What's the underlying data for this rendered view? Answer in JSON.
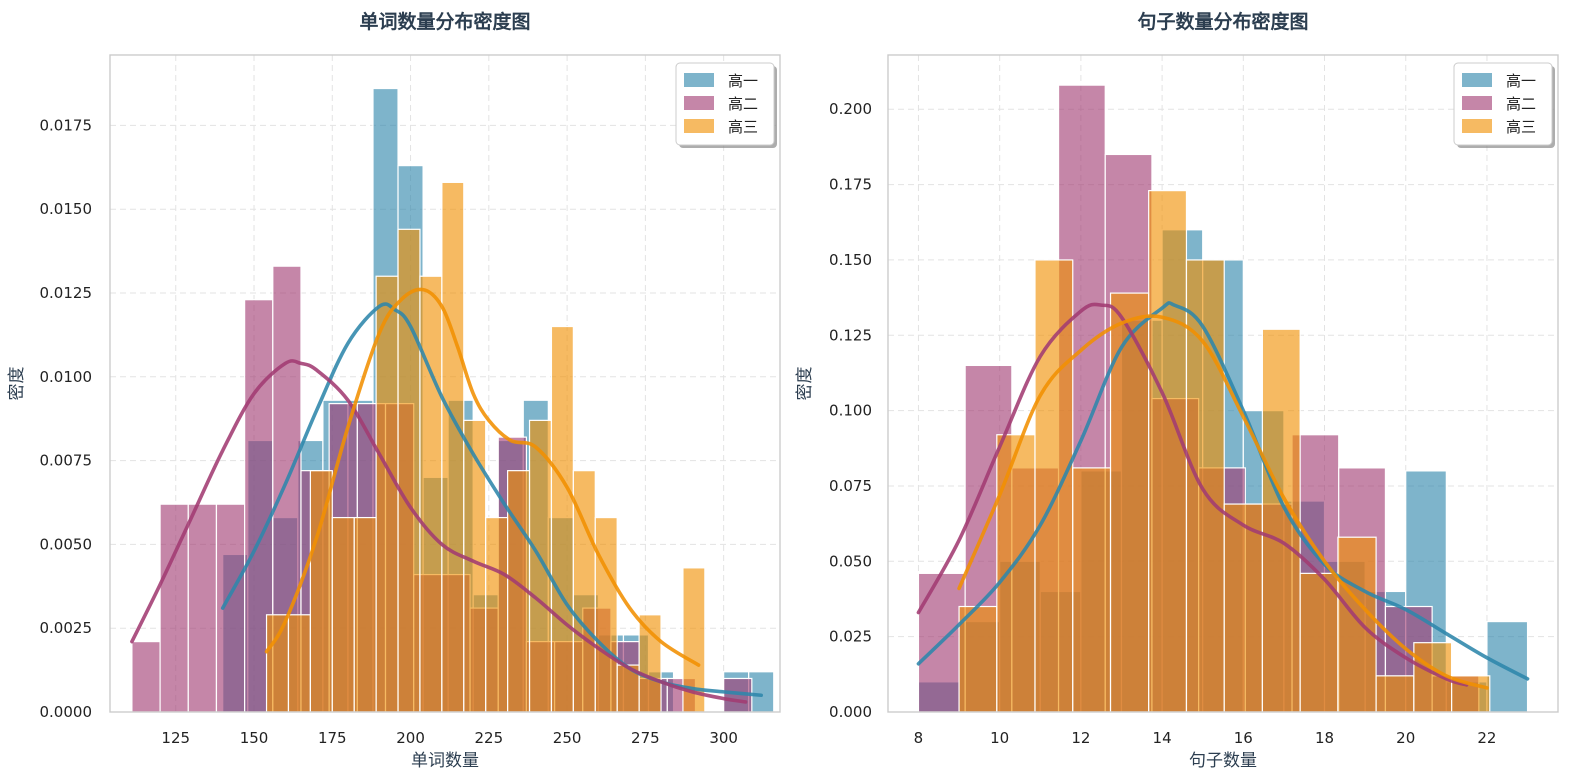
{
  "chart_data": [
    {
      "type": "histogram+kde",
      "title": "单词数量分布密度图",
      "xlabel": "单词数量",
      "ylabel": "密度",
      "xlim": [
        104,
        318
      ],
      "ylim": [
        0,
        0.0196
      ],
      "xticks": [
        125,
        150,
        175,
        200,
        225,
        250,
        275,
        300
      ],
      "xtick_labels": [
        "125",
        "150",
        "175",
        "200",
        "225",
        "250",
        "275",
        "300"
      ],
      "yticks": [
        0,
        0.0025,
        0.005,
        0.0075,
        0.01,
        0.0125,
        0.015,
        0.0175
      ],
      "ytick_labels": [
        "0.0000",
        "0.0025",
        "0.0050",
        "0.0075",
        "0.0100",
        "0.0125",
        "0.0150",
        "0.0175"
      ],
      "grid": true,
      "legend_position": "top-right",
      "series": [
        {
          "name": "高一",
          "color": "#2e86ab",
          "bins": [
            [
              140,
              148,
              0.0047
            ],
            [
              148,
              156,
              0.0081
            ],
            [
              156,
              164,
              0.0058
            ],
            [
              164,
              172,
              0.0081
            ],
            [
              172,
              180,
              0.0093
            ],
            [
              180,
              188,
              0.0093
            ],
            [
              188,
              196,
              0.0186
            ],
            [
              196,
              204,
              0.0163
            ],
            [
              204,
              212,
              0.007
            ],
            [
              212,
              220,
              0.0093
            ],
            [
              220,
              228,
              0.0035
            ],
            [
              228,
              236,
              0.0081
            ],
            [
              236,
              244,
              0.0093
            ],
            [
              244,
              252,
              0.0058
            ],
            [
              252,
              260,
              0.0035
            ],
            [
              260,
              268,
              0.0023
            ],
            [
              268,
              276,
              0.0023
            ],
            [
              276,
              284,
              0.0012
            ],
            [
              284,
              292,
              0.0
            ],
            [
              292,
              300,
              0.0
            ],
            [
              300,
              308,
              0.0012
            ],
            [
              308,
              316,
              0.0012
            ]
          ],
          "kde_x": [
            140,
            150,
            160,
            170,
            180,
            190,
            195,
            200,
            210,
            220,
            230,
            240,
            250,
            260,
            270,
            280,
            290,
            300,
            312
          ],
          "kde_y": [
            0.0031,
            0.0048,
            0.0068,
            0.009,
            0.011,
            0.0121,
            0.012,
            0.0115,
            0.0094,
            0.0077,
            0.0062,
            0.0048,
            0.0032,
            0.0021,
            0.0013,
            0.0009,
            0.0007,
            0.0006,
            0.0005
          ]
        },
        {
          "name": "高二",
          "color": "#a23b72",
          "bins": [
            [
              111,
              120,
              0.0021
            ],
            [
              120,
              129,
              0.0062
            ],
            [
              129,
              138,
              0.0062
            ],
            [
              138,
              147,
              0.0062
            ],
            [
              147,
              156,
              0.0123
            ],
            [
              156,
              165,
              0.0133
            ],
            [
              165,
              174,
              0.0072
            ],
            [
              174,
              183,
              0.0092
            ],
            [
              183,
              192,
              0.0092
            ],
            [
              192,
              201,
              0.0092
            ],
            [
              201,
              210,
              0.0041
            ],
            [
              210,
              219,
              0.0041
            ],
            [
              219,
              228,
              0.0031
            ],
            [
              228,
              237,
              0.0082
            ],
            [
              237,
              246,
              0.0021
            ],
            [
              246,
              255,
              0.0021
            ],
            [
              255,
              264,
              0.0031
            ],
            [
              264,
              273,
              0.0021
            ],
            [
              273,
              282,
              0.001
            ],
            [
              282,
              291,
              0.001
            ],
            [
              291,
              300,
              0.0
            ],
            [
              300,
              309,
              0.001
            ]
          ],
          "kde_x": [
            111,
            120,
            130,
            140,
            150,
            160,
            165,
            170,
            180,
            190,
            200,
            210,
            220,
            230,
            240,
            250,
            260,
            270,
            280,
            290,
            300,
            307
          ],
          "kde_y": [
            0.0021,
            0.0038,
            0.0058,
            0.0078,
            0.0095,
            0.0104,
            0.0104,
            0.0102,
            0.0093,
            0.0077,
            0.0061,
            0.005,
            0.0045,
            0.0041,
            0.0034,
            0.0026,
            0.0019,
            0.0013,
            0.0009,
            0.0006,
            0.0004,
            0.0003
          ]
        },
        {
          "name": "高三",
          "color": "#f18f01",
          "bins": [
            [
              154,
              161,
              0.0029
            ],
            [
              161,
              168,
              0.0029
            ],
            [
              168,
              175,
              0.0072
            ],
            [
              175,
              182,
              0.0058
            ],
            [
              182,
              189,
              0.0058
            ],
            [
              189,
              196,
              0.013
            ],
            [
              196,
              203,
              0.0144
            ],
            [
              203,
              210,
              0.013
            ],
            [
              210,
              217,
              0.0158
            ],
            [
              217,
              224,
              0.0087
            ],
            [
              224,
              231,
              0.0058
            ],
            [
              231,
              238,
              0.0072
            ],
            [
              238,
              245,
              0.0087
            ],
            [
              245,
              252,
              0.0115
            ],
            [
              252,
              259,
              0.0072
            ],
            [
              259,
              266,
              0.0058
            ],
            [
              266,
              273,
              0.0014
            ],
            [
              273,
              280,
              0.0029
            ],
            [
              280,
              287,
              0.0
            ],
            [
              287,
              294,
              0.0043
            ]
          ],
          "kde_x": [
            154,
            160,
            170,
            180,
            190,
            197,
            204,
            210,
            215,
            220,
            225,
            232,
            240,
            250,
            260,
            270,
            280,
            292
          ],
          "kde_y": [
            0.0018,
            0.0027,
            0.0052,
            0.0085,
            0.0113,
            0.0123,
            0.0126,
            0.0121,
            0.0109,
            0.0095,
            0.0087,
            0.0081,
            0.0079,
            0.0067,
            0.0047,
            0.0031,
            0.0021,
            0.0014
          ]
        }
      ]
    },
    {
      "type": "histogram+kde",
      "title": "句子数量分布密度图",
      "xlabel": "句子数量",
      "ylabel": "密度",
      "xlim": [
        7.25,
        23.75
      ],
      "ylim": [
        0,
        0.218
      ],
      "xticks": [
        8,
        10,
        12,
        14,
        16,
        18,
        20,
        22
      ],
      "xtick_labels": [
        "8",
        "10",
        "12",
        "14",
        "16",
        "18",
        "20",
        "22"
      ],
      "yticks": [
        0,
        0.025,
        0.05,
        0.075,
        0.1,
        0.125,
        0.15,
        0.175,
        0.2
      ],
      "ytick_labels": [
        "0.000",
        "0.025",
        "0.050",
        "0.075",
        "0.100",
        "0.125",
        "0.150",
        "0.175",
        "0.200"
      ],
      "grid": true,
      "legend_position": "top-right",
      "series": [
        {
          "name": "高一",
          "color": "#2e86ab",
          "bins": [
            [
              8,
              9,
              0.01
            ],
            [
              9,
              10,
              0.03
            ],
            [
              10,
              11,
              0.05
            ],
            [
              11,
              12,
              0.04
            ],
            [
              12,
              13,
              0.08
            ],
            [
              13,
              14,
              0.13
            ],
            [
              14,
              15,
              0.16
            ],
            [
              15,
              16,
              0.15
            ],
            [
              16,
              17,
              0.1
            ],
            [
              17,
              18,
              0.07
            ],
            [
              18,
              19,
              0.05
            ],
            [
              19,
              20,
              0.04
            ],
            [
              20,
              21,
              0.08
            ],
            [
              21,
              22,
              0.01
            ],
            [
              22,
              23,
              0.03
            ]
          ],
          "kde_x": [
            8,
            9,
            10,
            11,
            12,
            13,
            14,
            14.3,
            15,
            16,
            17,
            18,
            19,
            20,
            21,
            22,
            23
          ],
          "kde_y": [
            0.016,
            0.029,
            0.043,
            0.062,
            0.09,
            0.121,
            0.134,
            0.135,
            0.128,
            0.1,
            0.068,
            0.049,
            0.04,
            0.034,
            0.026,
            0.018,
            0.011
          ]
        },
        {
          "name": "高二",
          "color": "#a23b72",
          "bins": [
            [
              8,
              9.15,
              0.046
            ],
            [
              9.15,
              10.3,
              0.115
            ],
            [
              10.3,
              11.45,
              0.081
            ],
            [
              11.45,
              12.6,
              0.208
            ],
            [
              12.6,
              13.75,
              0.185
            ],
            [
              13.75,
              14.9,
              0.104
            ],
            [
              14.9,
              16.05,
              0.081
            ],
            [
              16.05,
              17.2,
              0.069
            ],
            [
              17.2,
              18.35,
              0.092
            ],
            [
              18.35,
              19.5,
              0.081
            ],
            [
              19.5,
              20.65,
              0.035
            ],
            [
              20.65,
              21.8,
              0.012
            ]
          ],
          "kde_x": [
            8,
            9,
            10,
            11,
            12,
            12.5,
            13,
            14,
            15,
            16,
            17,
            18,
            19,
            20,
            21,
            21.5
          ],
          "kde_y": [
            0.033,
            0.057,
            0.088,
            0.118,
            0.133,
            0.135,
            0.131,
            0.106,
            0.074,
            0.062,
            0.056,
            0.044,
            0.028,
            0.018,
            0.011,
            0.009
          ]
        },
        {
          "name": "高三",
          "color": "#f18f01",
          "bins": [
            [
              9,
              9.93,
              0.035
            ],
            [
              9.93,
              10.87,
              0.092
            ],
            [
              10.87,
              11.8,
              0.15
            ],
            [
              11.8,
              12.73,
              0.081
            ],
            [
              12.73,
              13.67,
              0.139
            ],
            [
              13.67,
              14.6,
              0.173
            ],
            [
              14.6,
              15.53,
              0.15
            ],
            [
              15.53,
              16.47,
              0.069
            ],
            [
              16.47,
              17.4,
              0.127
            ],
            [
              17.4,
              18.33,
              0.046
            ],
            [
              18.33,
              19.27,
              0.058
            ],
            [
              19.27,
              20.2,
              0.012
            ],
            [
              20.2,
              21.13,
              0.023
            ],
            [
              21.13,
              22.07,
              0.012
            ]
          ],
          "kde_x": [
            9,
            10,
            11,
            12,
            13,
            14,
            15,
            16,
            17,
            18,
            19,
            20,
            21,
            22
          ],
          "kde_y": [
            0.041,
            0.072,
            0.105,
            0.12,
            0.129,
            0.131,
            0.123,
            0.098,
            0.071,
            0.05,
            0.034,
            0.021,
            0.012,
            0.008
          ]
        }
      ]
    }
  ]
}
